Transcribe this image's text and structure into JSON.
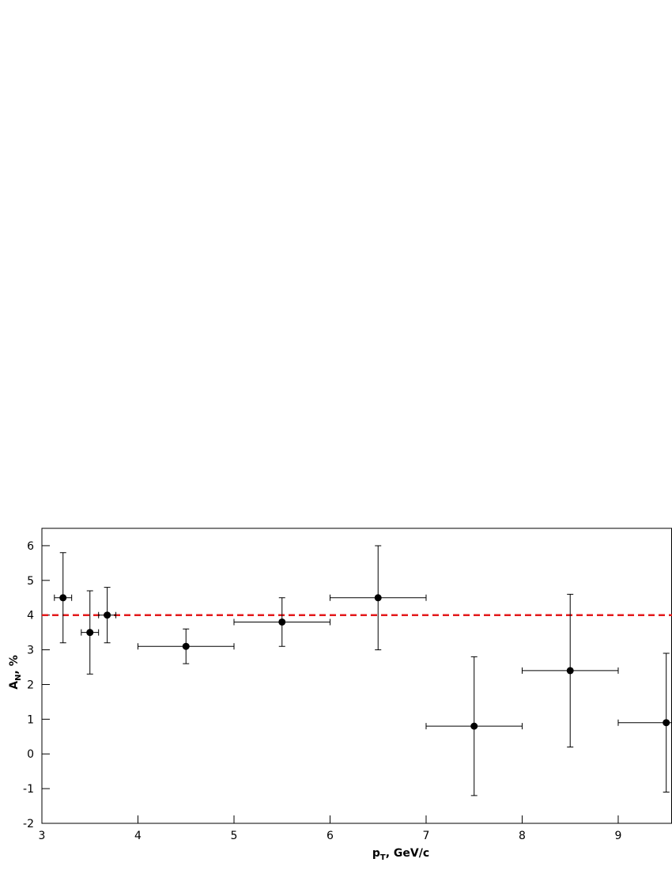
{
  "chart_data": {
    "type": "errorbar",
    "xlabel": [
      "p",
      "T",
      ", GeV/c"
    ],
    "ylabel": [
      "A",
      "N",
      ", %"
    ],
    "x": [
      3.22,
      3.5,
      3.68,
      4.5,
      5.5,
      6.5,
      7.5,
      8.5,
      9.5
    ],
    "values": [
      4.5,
      3.5,
      4.0,
      3.1,
      3.8,
      4.5,
      0.8,
      2.4,
      0.9
    ],
    "yerr": [
      1.3,
      1.2,
      0.8,
      0.5,
      0.7,
      1.5,
      2.0,
      2.2,
      2.0
    ],
    "xerr": [
      0.09,
      0.09,
      0.09,
      0.5,
      0.5,
      0.5,
      0.5,
      0.5,
      0.5
    ],
    "color": "#000000",
    "reference_line": 4,
    "reference_color": "#e31a1c",
    "xlim": [
      3,
      9.56
    ],
    "ylim": [
      -2,
      6.5
    ],
    "xticks": [
      3,
      4,
      5,
      6,
      7,
      8,
      9
    ],
    "yticks": [
      -2,
      -1,
      0,
      1,
      2,
      3,
      4,
      5,
      6
    ]
  }
}
